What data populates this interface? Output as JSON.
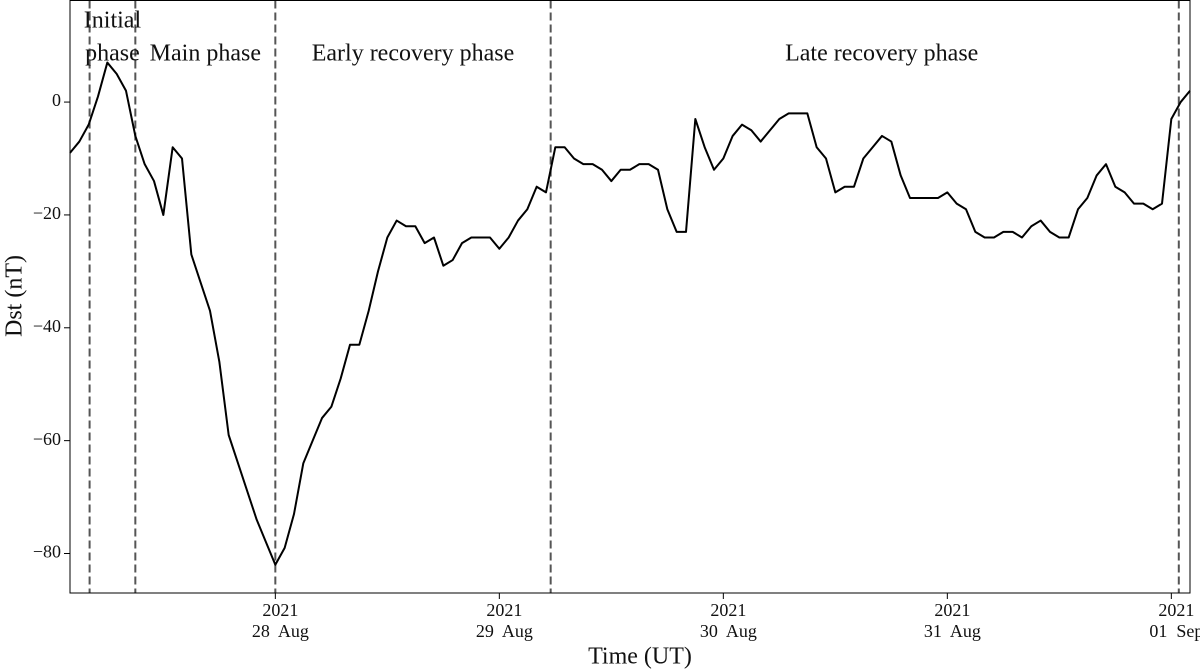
{
  "chart_data": {
    "type": "line",
    "xlabel": "Time (UT)",
    "ylabel": "Dst (nT)",
    "x": [
      2,
      3,
      4,
      5,
      6,
      7,
      8,
      9,
      10,
      11,
      12,
      13,
      14,
      15,
      16,
      17,
      18,
      19,
      20,
      21,
      22,
      23,
      24,
      25,
      26,
      27,
      28,
      29,
      30,
      31,
      32,
      33,
      34,
      35,
      36,
      37,
      38,
      39,
      40,
      41,
      42,
      43,
      44,
      45,
      46,
      47,
      48,
      49,
      50,
      51,
      52,
      53,
      54,
      55,
      56,
      57,
      58,
      59,
      60,
      61,
      62,
      63,
      64,
      65,
      66,
      67,
      68,
      69,
      70,
      71,
      72,
      73,
      74,
      75,
      76,
      77,
      78,
      79,
      80,
      81,
      82,
      83,
      84,
      85,
      86,
      87,
      88,
      89,
      90,
      91,
      92,
      93,
      94,
      95,
      96,
      97,
      98,
      99,
      100,
      101,
      102,
      103,
      104,
      105,
      106,
      107,
      108,
      109,
      110,
      111,
      112,
      113,
      114,
      115,
      116,
      117,
      118,
      119,
      120,
      121,
      122
    ],
    "series": [
      {
        "color": "#000000",
        "values": [
          -9,
          -7,
          -4,
          1,
          7,
          5,
          2,
          -6,
          -11,
          -14,
          -20,
          -8,
          -10,
          -27,
          -32,
          -37,
          -46,
          -59,
          -64,
          -69,
          -74,
          -78,
          -82,
          -79,
          -73,
          -64,
          -60,
          -56,
          -54,
          -49,
          -43,
          -43,
          -37,
          -30,
          -24,
          -21,
          -22,
          -22,
          -25,
          -24,
          -29,
          -28,
          -25,
          -24,
          -24,
          -24,
          -26,
          -24,
          -21,
          -19,
          -15,
          -16,
          -8,
          -8,
          -10,
          -11,
          -11,
          -12,
          -14,
          -12,
          -12,
          -11,
          -11,
          -12,
          -19,
          -23,
          -23,
          -3,
          -8,
          -12,
          -10,
          -6,
          -4,
          -5,
          -7,
          -5,
          -3,
          -2,
          -2,
          -2,
          -8,
          -10,
          -16,
          -15,
          -15,
          -10,
          -8,
          -6,
          -7,
          -13,
          -17,
          -17,
          -17,
          -17,
          -16,
          -18,
          -19,
          -23,
          -24,
          -24,
          -23,
          -23,
          -24,
          -22,
          -21,
          -23,
          -24,
          -24,
          -19,
          -17,
          -13,
          -11,
          -15,
          -16,
          -18,
          -18,
          -19,
          -18,
          -3,
          0,
          2
        ]
      }
    ],
    "xlim": [
      2,
      122
    ],
    "xticks": [
      {
        "value": 24,
        "label": [
          "2021",
          "28  Aug"
        ]
      },
      {
        "value": 48,
        "label": [
          "2021",
          "29  Aug"
        ]
      },
      {
        "value": 72,
        "label": [
          "2021",
          "30  Aug"
        ]
      },
      {
        "value": 96,
        "label": [
          "2021",
          "31  Aug"
        ]
      },
      {
        "value": 120,
        "label": [
          "2021",
          "01  Sep"
        ]
      }
    ],
    "ylim": [
      -87,
      18
    ],
    "yticks": [
      {
        "value": -80,
        "label": "−80"
      },
      {
        "value": -60,
        "label": "−60"
      },
      {
        "value": -40,
        "label": "−40"
      },
      {
        "value": -20,
        "label": "−20"
      },
      0
    ],
    "phase_boundaries": [
      4.1,
      9,
      24,
      53.5,
      120.8
    ],
    "boundary_color": "#555555",
    "phases": [
      [
        "Initial",
        "phase"
      ],
      [
        "Main phase"
      ],
      [
        "Early recovery phase"
      ],
      [
        "Late recovery phase"
      ]
    ]
  }
}
